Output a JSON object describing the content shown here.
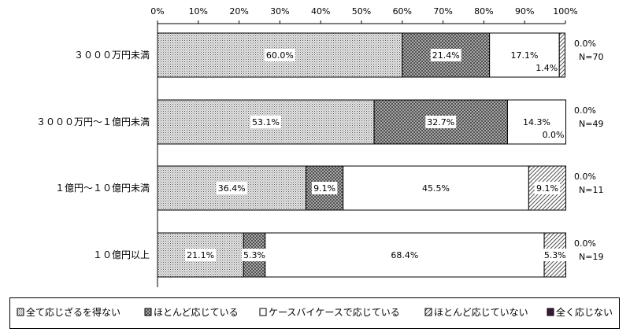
{
  "chart_data": {
    "type": "bar",
    "orientation": "horizontal",
    "stacked": true,
    "xlim": [
      0,
      100
    ],
    "x_ticks": [
      "0%",
      "10%",
      "20%",
      "30%",
      "40%",
      "50%",
      "60%",
      "70%",
      "80%",
      "90%",
      "100%"
    ],
    "categories": [
      "３０００万円未満",
      "３０００万円～１億円未満",
      "１億円～１０億円未満",
      "１０億円以上"
    ],
    "n_labels": [
      "N=70",
      "N=49",
      "N=11",
      "N=19"
    ],
    "series": [
      {
        "name": "全て応じざるを得ない",
        "values": [
          60.0,
          53.1,
          36.4,
          21.1
        ],
        "labels": [
          "60.0%",
          "53.1%",
          "36.4%",
          "21.1%"
        ],
        "pattern": "dots"
      },
      {
        "name": "ほとんど応じている",
        "values": [
          21.4,
          32.7,
          9.1,
          5.3
        ],
        "labels": [
          "21.4%",
          "32.7%",
          "9.1%",
          "5.3%"
        ],
        "pattern": "crosshatch"
      },
      {
        "name": "ケースバイケースで応じている",
        "values": [
          17.1,
          14.3,
          45.5,
          68.4
        ],
        "labels": [
          "17.1%",
          "14.3%",
          "45.5%",
          "68.4%"
        ],
        "pattern": "white"
      },
      {
        "name": "ほとんど応じていない",
        "values": [
          1.4,
          0.0,
          9.1,
          5.3
        ],
        "labels": [
          "1.4%",
          "0.0%",
          "9.1%",
          "5.3%"
        ],
        "pattern": "diagonal"
      },
      {
        "name": "全く応じない",
        "values": [
          0.0,
          0.0,
          0.0,
          0.0
        ],
        "labels": [
          "0.0%",
          "0.0%",
          "0.0%",
          "0.0%"
        ],
        "pattern": "dark"
      }
    ],
    "grid": false,
    "legend_position": "bottom"
  }
}
